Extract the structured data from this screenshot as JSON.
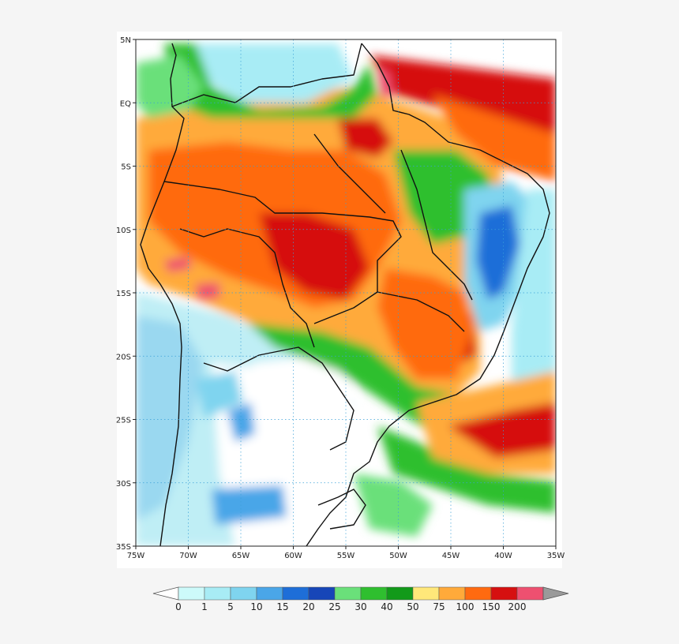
{
  "map": {
    "title": "",
    "x_ticks": [
      "75W",
      "70W",
      "65W",
      "60W",
      "55W",
      "50W",
      "45W",
      "40W",
      "35W"
    ],
    "x_tick_values": [
      -75,
      -70,
      -65,
      -60,
      -55,
      -50,
      -45,
      -40,
      -35
    ],
    "y_ticks": [
      "5N",
      "EQ",
      "5S",
      "10S",
      "15S",
      "20S",
      "25S",
      "30S",
      "35S"
    ],
    "y_tick_values": [
      5,
      0,
      -5,
      -10,
      -15,
      -20,
      -25,
      -30,
      -35
    ],
    "lon_range": [
      -75,
      -35
    ],
    "lat_range": [
      -35,
      5
    ],
    "grid": "dotted",
    "field": "filled contour precipitation",
    "colors": {
      "ocean_north_red": "#cc1010",
      "land_light": "#ffffff"
    }
  },
  "colorbar": {
    "labels": [
      "0",
      "1",
      "5",
      "10",
      "15",
      "20",
      "25",
      "30",
      "40",
      "50",
      "75",
      "100",
      "150",
      "200"
    ],
    "colors": [
      "#cdfafa",
      "#a8ecf5",
      "#7fd4ef",
      "#4aa6e8",
      "#1e6ed8",
      "#1746b8",
      "#6ae07a",
      "#2fbf2f",
      "#129a1a",
      "#ffe87a",
      "#ffaa3a",
      "#ff6a10",
      "#d61010",
      "#ee5070"
    ],
    "under_color": "#ffffff",
    "over_color": "#9a9a9a"
  }
}
